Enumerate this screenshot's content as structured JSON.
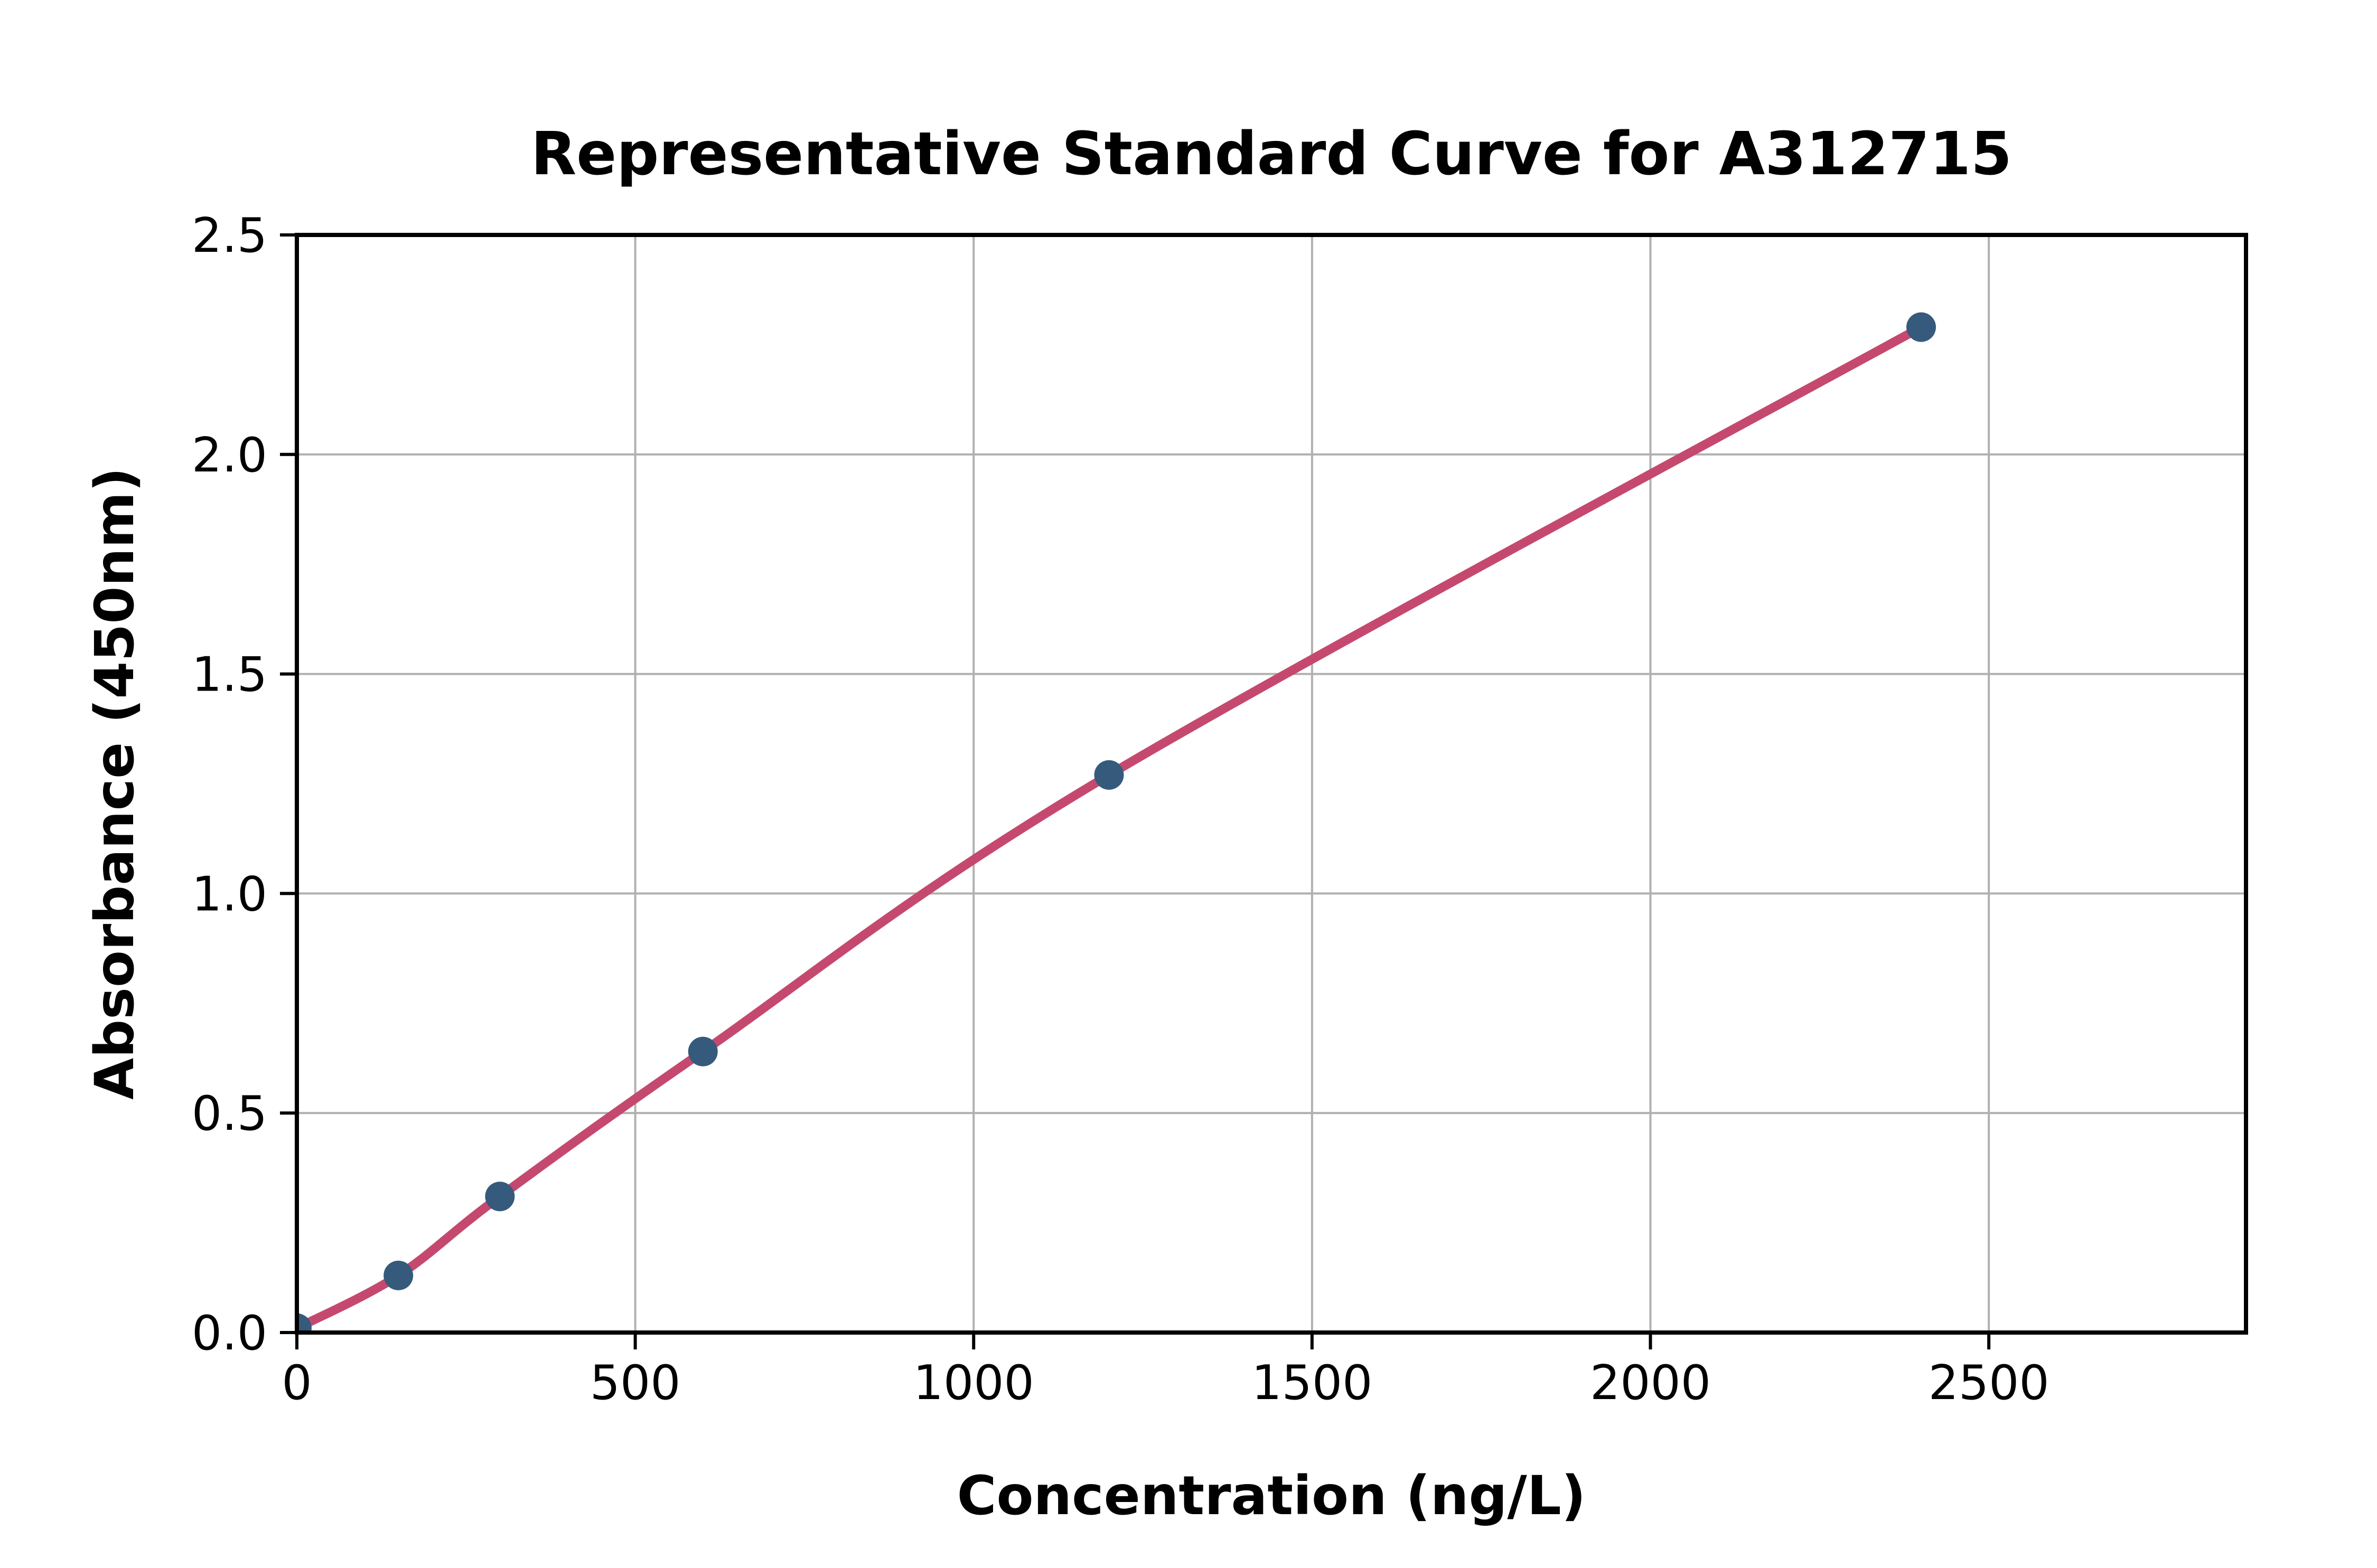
{
  "chart_data": {
    "type": "scatter",
    "title": "Representative Standard Curve for A312715",
    "xlabel": "Concentration (ng/L)",
    "ylabel": "Absorbance (450nm)",
    "xlim": [
      0,
      2880
    ],
    "ylim": [
      0,
      2.5
    ],
    "grid": true,
    "legend": "none",
    "x_ticks": [
      {
        "value": 0,
        "label": "0"
      },
      {
        "value": 500,
        "label": "500"
      },
      {
        "value": 1000,
        "label": "1000"
      },
      {
        "value": 1500,
        "label": "1500"
      },
      {
        "value": 2000,
        "label": "2000"
      },
      {
        "value": 2500,
        "label": "2500"
      }
    ],
    "y_ticks": [
      {
        "value": 0.0,
        "label": "0.0"
      },
      {
        "value": 0.5,
        "label": "0.5"
      },
      {
        "value": 1.0,
        "label": "1.0"
      },
      {
        "value": 1.5,
        "label": "1.5"
      },
      {
        "value": 2.0,
        "label": "2.0"
      },
      {
        "value": 2.5,
        "label": "2.5"
      }
    ],
    "series": [
      {
        "name": "standard-curve",
        "points": [
          {
            "x": 0,
            "y": 0.01
          },
          {
            "x": 150,
            "y": 0.13
          },
          {
            "x": 300,
            "y": 0.31
          },
          {
            "x": 600,
            "y": 0.64
          },
          {
            "x": 1200,
            "y": 1.27
          },
          {
            "x": 2400,
            "y": 2.29
          }
        ]
      }
    ],
    "colors": {
      "line": "#C5496F",
      "marker": "#355A7C",
      "grid": "#B0B0B0",
      "spine": "#000000",
      "text": "#000000",
      "background": "#FFFFFF"
    }
  }
}
